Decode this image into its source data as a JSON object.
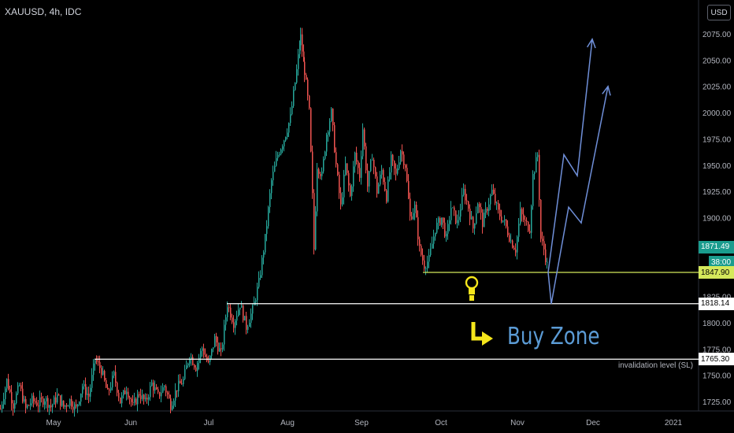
{
  "header": {
    "symbol": "XAUUSD, 4h, IDC",
    "currency": "USD"
  },
  "chart_data": {
    "type": "candlestick",
    "title": "XAUUSD, 4h, IDC",
    "ylim": [
      1718,
      2115
    ],
    "y_ticks": [
      1725,
      1750,
      1775,
      1800,
      1825,
      1850,
      1875,
      1900,
      1925,
      1950,
      1975,
      2000,
      2025,
      2050,
      2075
    ],
    "y_tick_labels": [
      "1725.00",
      "1750.00",
      "1775.00",
      "1800.00",
      "1825.00",
      "1850.00",
      "1875.00",
      "1900.00",
      "1925.00",
      "1950.00",
      "1975.00",
      "2000.00",
      "2025.00",
      "2050.00",
      "2075.00"
    ],
    "x_labels": [
      "May",
      "Jun",
      "Jul",
      "Aug",
      "Sep",
      "Oct",
      "Nov",
      "Dec",
      "2021"
    ],
    "price_path": [
      [
        0,
        1718
      ],
      [
        8,
        1745
      ],
      [
        16,
        1722
      ],
      [
        24,
        1740
      ],
      [
        32,
        1718
      ],
      [
        40,
        1726
      ],
      [
        48,
        1723
      ],
      [
        56,
        1728
      ],
      [
        64,
        1720
      ],
      [
        72,
        1730
      ],
      [
        80,
        1720
      ],
      [
        88,
        1726
      ],
      [
        96,
        1718
      ],
      [
        104,
        1740
      ],
      [
        112,
        1730
      ],
      [
        120,
        1765
      ],
      [
        128,
        1755
      ],
      [
        136,
        1732
      ],
      [
        144,
        1750
      ],
      [
        152,
        1725
      ],
      [
        160,
        1738
      ],
      [
        168,
        1720
      ],
      [
        176,
        1733
      ],
      [
        184,
        1724
      ],
      [
        192,
        1742
      ],
      [
        200,
        1730
      ],
      [
        208,
        1740
      ],
      [
        216,
        1722
      ],
      [
        224,
        1738
      ],
      [
        232,
        1745
      ],
      [
        240,
        1770
      ],
      [
        248,
        1758
      ],
      [
        256,
        1776
      ],
      [
        264,
        1760
      ],
      [
        272,
        1785
      ],
      [
        280,
        1770
      ],
      [
        288,
        1818
      ],
      [
        296,
        1800
      ],
      [
        304,
        1818
      ],
      [
        312,
        1796
      ],
      [
        320,
        1812
      ],
      [
        328,
        1838
      ],
      [
        336,
        1880
      ],
      [
        344,
        1935
      ],
      [
        352,
        1960
      ],
      [
        360,
        1975
      ],
      [
        368,
        1995
      ],
      [
        376,
        2040
      ],
      [
        381,
        2072
      ],
      [
        386,
        2040
      ],
      [
        392,
        2000
      ],
      [
        396,
        1920
      ],
      [
        398,
        1870
      ],
      [
        402,
        1950
      ],
      [
        408,
        1940
      ],
      [
        414,
        1980
      ],
      [
        420,
        2000
      ],
      [
        426,
        1950
      ],
      [
        432,
        1910
      ],
      [
        438,
        1950
      ],
      [
        444,
        1920
      ],
      [
        450,
        1960
      ],
      [
        456,
        1940
      ],
      [
        460,
        1985
      ],
      [
        466,
        1930
      ],
      [
        472,
        1960
      ],
      [
        478,
        1925
      ],
      [
        484,
        1945
      ],
      [
        490,
        1920
      ],
      [
        496,
        1955
      ],
      [
        502,
        1940
      ],
      [
        508,
        1965
      ],
      [
        514,
        1950
      ],
      [
        520,
        1900
      ],
      [
        526,
        1910
      ],
      [
        532,
        1870
      ],
      [
        538,
        1855
      ],
      [
        544,
        1860
      ],
      [
        552,
        1890
      ],
      [
        560,
        1900
      ],
      [
        566,
        1880
      ],
      [
        572,
        1910
      ],
      [
        580,
        1895
      ],
      [
        588,
        1925
      ],
      [
        594,
        1910
      ],
      [
        600,
        1890
      ],
      [
        606,
        1915
      ],
      [
        612,
        1895
      ],
      [
        618,
        1910
      ],
      [
        624,
        1925
      ],
      [
        632,
        1905
      ],
      [
        640,
        1895
      ],
      [
        648,
        1878
      ],
      [
        654,
        1870
      ],
      [
        660,
        1905
      ],
      [
        666,
        1895
      ],
      [
        672,
        1890
      ],
      [
        676,
        1940
      ],
      [
        682,
        1960
      ],
      [
        686,
        1880
      ],
      [
        690,
        1870
      ],
      [
        694,
        1855
      ],
      [
        696,
        1870
      ]
    ],
    "levels": [
      {
        "label": "1847.90",
        "value": 1847.9,
        "color": "#d4e85b"
      },
      {
        "label": "1818.14",
        "value": 1818.14,
        "color": "#ffffff"
      },
      {
        "label": "1765.30",
        "value": 1765.3,
        "color": "#ffffff"
      }
    ],
    "current_price": {
      "label": "1871.49",
      "color": "#1a9c8e"
    },
    "countdown": {
      "label": "38:00"
    },
    "projection_paths": [
      [
        [
          696,
          1848
        ],
        [
          716,
          1960
        ],
        [
          733,
          1940
        ],
        [
          752,
          2070
        ]
      ],
      [
        [
          696,
          1848
        ],
        [
          700,
          1818
        ],
        [
          722,
          1910
        ],
        [
          738,
          1895
        ],
        [
          772,
          2025
        ]
      ]
    ],
    "annotations": {
      "buy_zone": "Buy Zone",
      "invalidation": "invalidation level (SL)"
    }
  }
}
